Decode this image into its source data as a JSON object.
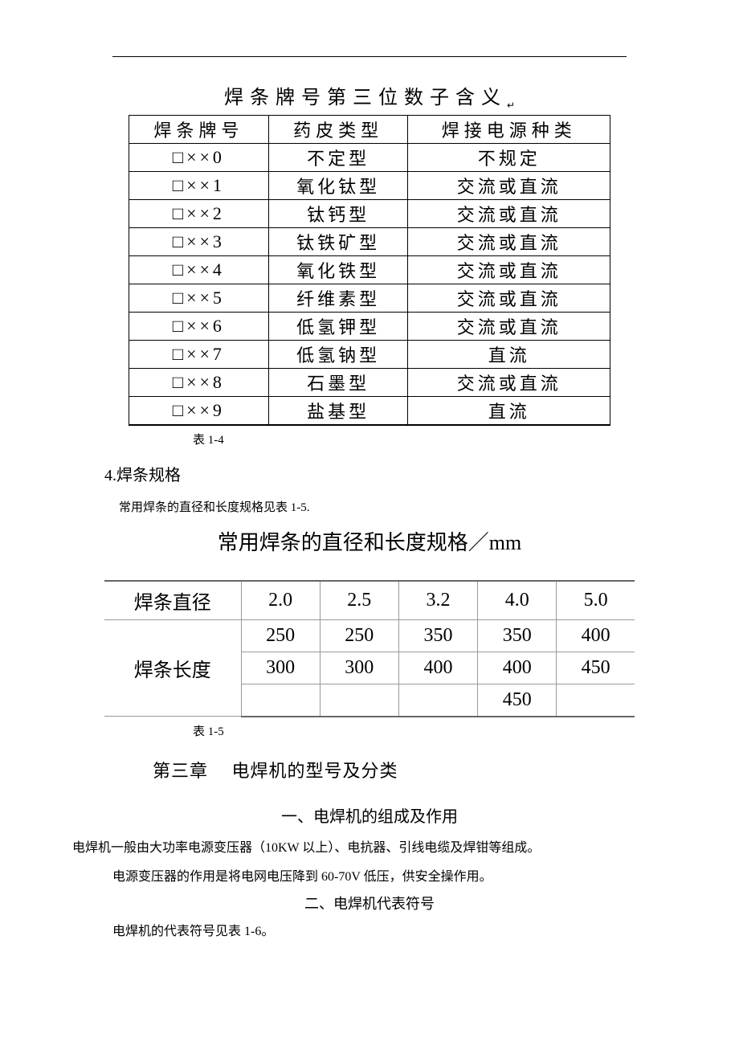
{
  "table1": {
    "title": "焊条牌号第三位数子含义",
    "arrow": "↵",
    "headers": [
      "焊条牌号",
      "药皮类型",
      "焊接电源种类"
    ],
    "rows": [
      [
        "□××0",
        "不定型",
        "不规定"
      ],
      [
        "□××1",
        "氧化钛型",
        "交流或直流"
      ],
      [
        "□××2",
        "钛钙型",
        "交流或直流"
      ],
      [
        "□××3",
        "钛铁矿型",
        "交流或直流"
      ],
      [
        "□××4",
        "氧化铁型",
        "交流或直流"
      ],
      [
        "□××5",
        "纤维素型",
        "交流或直流"
      ],
      [
        "□××6",
        "低氢钾型",
        "交流或直流"
      ],
      [
        "□××7",
        "低氢钠型",
        "直流"
      ],
      [
        "□××8",
        "石墨型",
        "交流或直流"
      ],
      [
        "□××9",
        "盐基型",
        "直流"
      ]
    ],
    "caption": "表 1-4"
  },
  "section": {
    "num": "4.焊条规格",
    "note": "常用焊条的直径和长度规格见表 1-5."
  },
  "table2": {
    "title": "常用焊条的直径和长度规格／mm",
    "row_label_diam": "焊条直径",
    "diams": [
      "2.0",
      "2.5",
      "3.2",
      "4.0",
      "5.0"
    ],
    "row_label_len": "焊条长度",
    "lengths": [
      [
        "250",
        "250",
        "350",
        "350",
        "400"
      ],
      [
        "300",
        "300",
        "400",
        "400",
        "450"
      ],
      [
        "",
        "",
        "",
        "450",
        ""
      ]
    ],
    "caption": "表 1-5"
  },
  "chapter": {
    "title": "第三章　 电焊机的型号及分类",
    "sub1": "一、电焊机的组成及作用",
    "line1": "电焊机一般由大功率电源变压器（10KW 以上）、电抗器、引线电缆及焊钳等组成。",
    "line2": "电源变压器的作用是将电网电压降到 60-70V 低压，供安全操作用。",
    "sub2": "二、电焊机代表符号",
    "line3": "电焊机的代表符号见表 1-6。"
  }
}
